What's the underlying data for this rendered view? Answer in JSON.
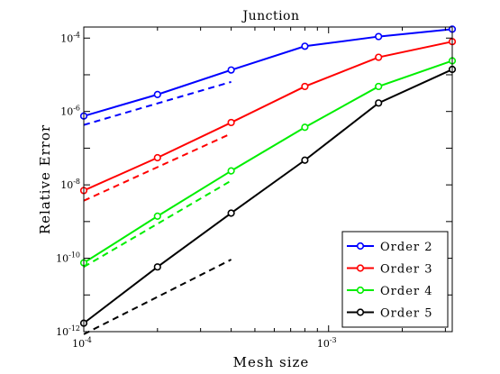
{
  "chart_data": {
    "type": "line",
    "title": "Junction",
    "xlabel": "Mesh size",
    "ylabel": "Relative Error",
    "xscale": "log",
    "yscale": "log",
    "xlim": [
      0.0001,
      0.0032
    ],
    "ylim": [
      1e-12,
      0.0002
    ],
    "x_ticks": [
      {
        "value": 0.0001,
        "base": "10",
        "exp": "-4"
      },
      {
        "value": 0.001,
        "base": "10",
        "exp": "-3"
      }
    ],
    "y_ticks": [
      {
        "value": 1e-12,
        "base": "10",
        "exp": "-12"
      },
      {
        "value": 1e-10,
        "base": "10",
        "exp": "-10"
      },
      {
        "value": 1e-08,
        "base": "10",
        "exp": "-8"
      },
      {
        "value": 1e-06,
        "base": "10",
        "exp": "-6"
      },
      {
        "value": 0.0001,
        "base": "10",
        "exp": "-4"
      }
    ],
    "x": [
      0.0001,
      0.0002,
      0.0004,
      0.0008,
      0.0016,
      0.0032
    ],
    "series": [
      {
        "name": "Order 2",
        "color": "#0000ff",
        "values": [
          7.5e-07,
          2.9e-06,
          1.35e-05,
          6e-05,
          0.00011,
          0.000175
        ],
        "reference": {
          "x": [
            0.0001,
            0.0004
          ],
          "values": [
            4.3e-07,
            6.4e-06
          ]
        }
      },
      {
        "name": "Order 3",
        "color": "#ff0000",
        "values": [
          7e-09,
          5.5e-08,
          5e-07,
          4.8e-06,
          3e-05,
          8e-05
        ],
        "reference": {
          "x": [
            0.0001,
            0.0004
          ],
          "values": [
            3.7e-09,
            2.5e-07
          ]
        }
      },
      {
        "name": "Order 4",
        "color": "#00ee00",
        "values": [
          7.5e-11,
          1.4e-09,
          2.4e-08,
          3.7e-07,
          4.8e-06,
          2.4e-05
        ],
        "reference": {
          "x": [
            0.0001,
            0.0004
          ],
          "values": [
            5.8e-11,
            1.3e-08
          ]
        }
      },
      {
        "name": "Order 5",
        "color": "#000000",
        "values": [
          1.7e-12,
          5.8e-11,
          1.7e-09,
          4.7e-08,
          1.7e-06,
          1.4e-05
        ],
        "reference": {
          "x": [
            0.0001,
            0.0004
          ],
          "values": [
            8.5e-13,
            9.2e-11
          ]
        }
      }
    ],
    "grid": false,
    "legend_position": "bottom-right",
    "reference_style": "dashed"
  }
}
